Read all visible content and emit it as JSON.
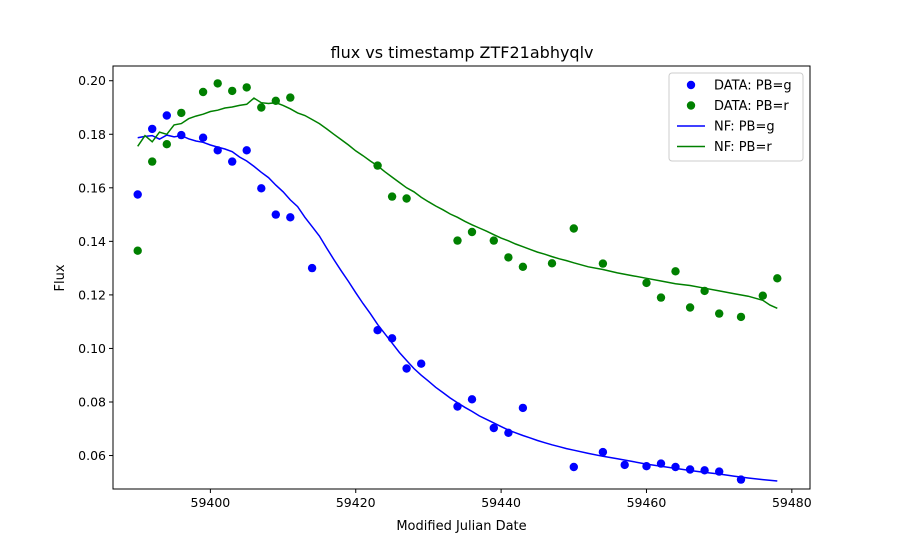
{
  "chart_data": {
    "type": "scatter",
    "title": "flux vs timestamp ZTF21abhyqlv",
    "xlabel": "Modified Julian Date",
    "ylabel": "Flux",
    "xlim": [
      59386.6,
      59482.5
    ],
    "ylim": [
      0.0475,
      0.2055
    ],
    "xticks": [
      59400,
      59420,
      59440,
      59460,
      59480
    ],
    "yticks": [
      0.06,
      0.08,
      0.1,
      0.12,
      0.14,
      0.16,
      0.18,
      0.2
    ],
    "xtick_labels": [
      "59400",
      "59420",
      "59440",
      "59460",
      "59480"
    ],
    "ytick_labels": [
      "0.06",
      "0.08",
      "0.10",
      "0.12",
      "0.14",
      "0.16",
      "0.18",
      "0.20"
    ],
    "grid": false,
    "legend_position": "top-right",
    "series": [
      {
        "name": "DATA: PB=g",
        "kind": "scatter",
        "color": "#0000ff",
        "x": [
          59390.0,
          59392.0,
          59394.0,
          59396.0,
          59399.0,
          59401.0,
          59403.0,
          59405.0,
          59407.0,
          59409.0,
          59411.0,
          59414.0,
          59423.0,
          59425.0,
          59427.0,
          59429.0,
          59434.0,
          59436.0,
          59439.0,
          59441.0,
          59443.0,
          59450.0,
          59454.0,
          59457.0,
          59460.0,
          59462.0,
          59464.0,
          59466.0,
          59468.0,
          59470.0,
          59473.0
        ],
        "y": [
          0.1575,
          0.182,
          0.187,
          0.1797,
          0.1787,
          0.174,
          0.1698,
          0.174,
          0.1598,
          0.15,
          0.149,
          0.13,
          0.1068,
          0.1038,
          0.0925,
          0.0943,
          0.0783,
          0.081,
          0.0703,
          0.0685,
          0.0778,
          0.0557,
          0.0613,
          0.0565,
          0.056,
          0.057,
          0.0557,
          0.0548,
          0.0545,
          0.054,
          0.051
        ]
      },
      {
        "name": "DATA: PB=r",
        "kind": "scatter",
        "color": "#008000",
        "x": [
          59390.0,
          59392.0,
          59394.0,
          59396.0,
          59399.0,
          59401.0,
          59403.0,
          59405.0,
          59407.0,
          59409.0,
          59411.0,
          59423.0,
          59425.0,
          59427.0,
          59434.0,
          59436.0,
          59439.0,
          59441.0,
          59443.0,
          59447.0,
          59450.0,
          59454.0,
          59460.0,
          59462.0,
          59464.0,
          59466.0,
          59468.0,
          59470.0,
          59473.0,
          59476.0,
          59478.0
        ],
        "y": [
          0.1365,
          0.1698,
          0.1763,
          0.188,
          0.1958,
          0.199,
          0.1962,
          0.1975,
          0.19,
          0.1925,
          0.1937,
          0.1683,
          0.1567,
          0.156,
          0.1403,
          0.1435,
          0.1403,
          0.134,
          0.1305,
          0.1318,
          0.1448,
          0.1317,
          0.1245,
          0.119,
          0.1288,
          0.1153,
          0.1215,
          0.113,
          0.1118,
          0.1197,
          0.1262
        ]
      },
      {
        "name": "NF: PB=g",
        "kind": "line",
        "color": "#0000ff",
        "x": [
          59390,
          59391,
          59392,
          59393,
          59394,
          59395,
          59396,
          59397,
          59398,
          59399,
          59400,
          59401,
          59402,
          59403,
          59404,
          59405,
          59406,
          59407,
          59408,
          59409,
          59410,
          59411,
          59412,
          59413,
          59414,
          59415,
          59416,
          59417,
          59418,
          59419,
          59420,
          59421,
          59422,
          59423,
          59424,
          59425,
          59426,
          59427,
          59428,
          59429,
          59430,
          59431,
          59432,
          59433,
          59434,
          59435,
          59436,
          59437,
          59438,
          59439,
          59440,
          59441,
          59442,
          59443,
          59444,
          59445,
          59446,
          59447,
          59448,
          59449,
          59450,
          59452,
          59454,
          59456,
          59458,
          59460,
          59462,
          59464,
          59466,
          59468,
          59470,
          59472,
          59474,
          59476,
          59478
        ],
        "y": [
          0.1787,
          0.1792,
          0.1795,
          0.1782,
          0.1797,
          0.179,
          0.1795,
          0.1783,
          0.1775,
          0.177,
          0.176,
          0.1752,
          0.1745,
          0.1735,
          0.1715,
          0.17,
          0.168,
          0.1658,
          0.1638,
          0.161,
          0.1585,
          0.1555,
          0.153,
          0.149,
          0.1455,
          0.142,
          0.1375,
          0.1332,
          0.129,
          0.125,
          0.1208,
          0.1168,
          0.113,
          0.109,
          0.1055,
          0.102,
          0.0985,
          0.0955,
          0.0925,
          0.09,
          0.0878,
          0.0855,
          0.0835,
          0.0815,
          0.0797,
          0.078,
          0.0765,
          0.0748,
          0.0735,
          0.0722,
          0.0708,
          0.0695,
          0.0685,
          0.0675,
          0.0666,
          0.0656,
          0.0648,
          0.064,
          0.0633,
          0.0626,
          0.062,
          0.0608,
          0.0597,
          0.0588,
          0.0578,
          0.0568,
          0.056,
          0.0552,
          0.0544,
          0.0537,
          0.0531,
          0.0523,
          0.0516,
          0.051,
          0.0505
        ]
      },
      {
        "name": "NF: PB=r",
        "kind": "line",
        "color": "#008000",
        "x": [
          59390,
          59391,
          59392,
          59393,
          59394,
          59395,
          59396,
          59397,
          59398,
          59399,
          59400,
          59401,
          59402,
          59403,
          59404,
          59405,
          59406,
          59407,
          59408,
          59409,
          59410,
          59411,
          59412,
          59413,
          59414,
          59415,
          59416,
          59417,
          59418,
          59419,
          59420,
          59421,
          59422,
          59423,
          59424,
          59425,
          59426,
          59427,
          59428,
          59429,
          59430,
          59431,
          59432,
          59433,
          59434,
          59435,
          59436,
          59437,
          59438,
          59439,
          59440,
          59441,
          59442,
          59443,
          59444,
          59445,
          59446,
          59447,
          59448,
          59449,
          59450,
          59452,
          59454,
          59456,
          59458,
          59460,
          59462,
          59464,
          59466,
          59468,
          59470,
          59472,
          59474,
          59476,
          59477,
          59478
        ],
        "y": [
          0.1755,
          0.1795,
          0.1772,
          0.1808,
          0.18,
          0.1835,
          0.184,
          0.1858,
          0.1868,
          0.1875,
          0.1885,
          0.189,
          0.1898,
          0.1902,
          0.1908,
          0.1912,
          0.1935,
          0.1918,
          0.1915,
          0.1918,
          0.1908,
          0.1895,
          0.188,
          0.187,
          0.1855,
          0.184,
          0.182,
          0.18,
          0.178,
          0.176,
          0.1738,
          0.172,
          0.17,
          0.1682,
          0.166,
          0.164,
          0.162,
          0.16,
          0.1585,
          0.1565,
          0.1548,
          0.1532,
          0.1518,
          0.1502,
          0.149,
          0.1475,
          0.1462,
          0.145,
          0.1438,
          0.1425,
          0.1412,
          0.1402,
          0.139,
          0.138,
          0.137,
          0.136,
          0.1352,
          0.1343,
          0.1335,
          0.1328,
          0.132,
          0.1305,
          0.1295,
          0.1282,
          0.1272,
          0.1262,
          0.1252,
          0.1242,
          0.1235,
          0.1225,
          0.1215,
          0.1205,
          0.1195,
          0.118,
          0.1162,
          0.115
        ]
      }
    ]
  }
}
